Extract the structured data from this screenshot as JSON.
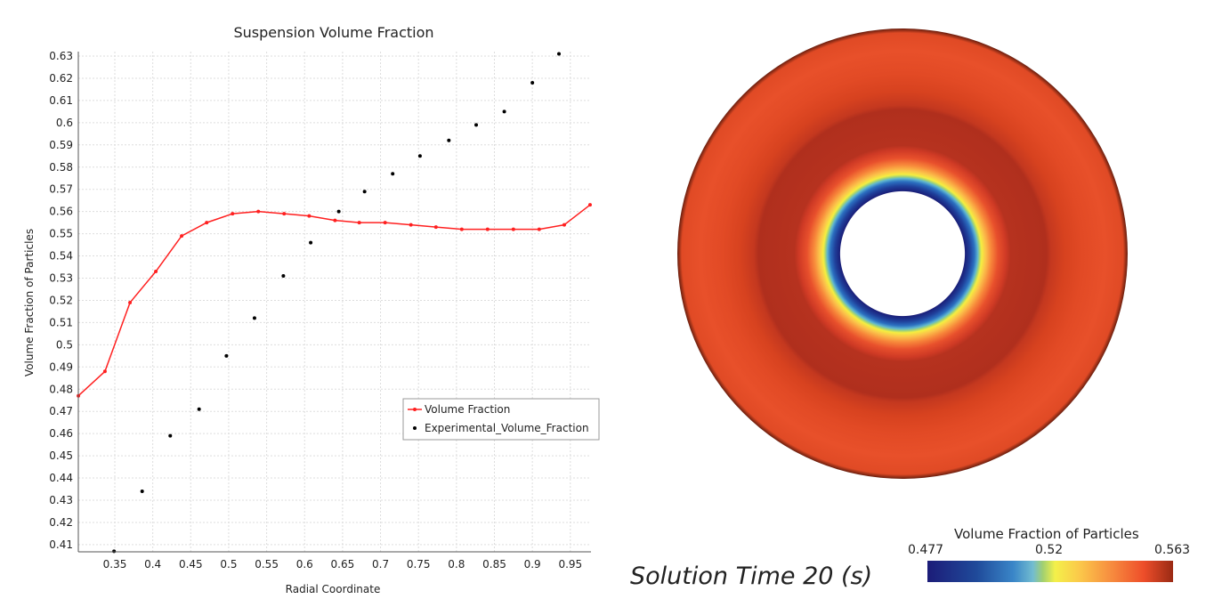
{
  "chart_data": {
    "type": "line",
    "title": "Suspension Volume Fraction",
    "xlabel": "Radial Coordinate",
    "ylabel": "Volume Fraction of Particles",
    "xlim": [
      0.302,
      0.976
    ],
    "ylim": [
      0.407,
      0.633
    ],
    "xticks": [
      0.35,
      0.4,
      0.45,
      0.5,
      0.55,
      0.6,
      0.65,
      0.7,
      0.75,
      0.8,
      0.85,
      0.9,
      0.95
    ],
    "xtick_labels": [
      "0.35",
      "0.4",
      "0.45",
      "0.5",
      "0.55",
      "0.6",
      "0.65",
      "0.7",
      "0.75",
      "0.8",
      "0.85",
      "0.9",
      "0.95"
    ],
    "yticks": [
      0.41,
      0.42,
      0.43,
      0.44,
      0.45,
      0.46,
      0.47,
      0.48,
      0.49,
      0.5,
      0.51,
      0.52,
      0.53,
      0.54,
      0.55,
      0.56,
      0.57,
      0.58,
      0.59,
      0.6,
      0.61,
      0.62,
      0.63
    ],
    "ytick_labels": [
      "0.41",
      "0.42",
      "0.43",
      "0.44",
      "0.45",
      "0.46",
      "0.47",
      "0.48",
      "0.49",
      "0.5",
      "0.51",
      "0.52",
      "0.53",
      "0.54",
      "0.55",
      "0.56",
      "0.57",
      "0.58",
      "0.59",
      "0.6",
      "0.61",
      "0.62",
      "0.63"
    ],
    "grid": true,
    "legend_position": "bottom-right",
    "series": [
      {
        "name": "Volume Fraction",
        "type": "line",
        "color": "#ff2020",
        "x": [
          0.302,
          0.337,
          0.37,
          0.404,
          0.438,
          0.471,
          0.505,
          0.539,
          0.573,
          0.606,
          0.64,
          0.672,
          0.706,
          0.74,
          0.773,
          0.807,
          0.841,
          0.875,
          0.909,
          0.942,
          0.976
        ],
        "y": [
          0.477,
          0.488,
          0.519,
          0.533,
          0.549,
          0.555,
          0.559,
          0.56,
          0.559,
          0.558,
          0.556,
          0.555,
          0.555,
          0.554,
          0.553,
          0.552,
          0.552,
          0.552,
          0.552,
          0.554,
          0.563
        ]
      },
      {
        "name": "Experimental_Volume_Fraction",
        "type": "scatter",
        "color": "#000000",
        "x": [
          0.349,
          0.386,
          0.423,
          0.461,
          0.497,
          0.534,
          0.572,
          0.608,
          0.645,
          0.679,
          0.716,
          0.752,
          0.79,
          0.826,
          0.863,
          0.9,
          0.935
        ],
        "y": [
          0.407,
          0.434,
          0.459,
          0.471,
          0.495,
          0.512,
          0.531,
          0.546,
          0.56,
          0.569,
          0.577,
          0.585,
          0.592,
          0.599,
          0.605,
          0.618,
          0.631
        ]
      }
    ]
  },
  "scene": {
    "solution_time": "Solution Time 20 (s)",
    "colorbar_title": "Volume Fraction of Particles",
    "colorbar_min": "0.477",
    "colorbar_mid": "0.52",
    "colorbar_max": "0.563"
  }
}
